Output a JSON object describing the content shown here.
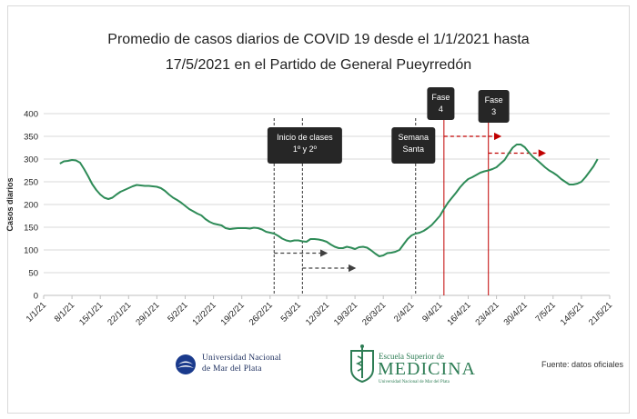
{
  "title_line_1": "Promedio de casos diarios de COVID 19 desde el 1/1/2021 hasta",
  "title_line_2": "17/5/2021 en el Partido de General Pueyrredón",
  "source": "Fuente: datos oficiales",
  "logos": {
    "unmdp_line_1": "Universidad Nacional",
    "unmdp_line_2": "de Mar del Plata",
    "medicina_top": "Escuela Superior de",
    "medicina_main": "MEDICINA",
    "medicina_bottom": "Universidad Nacional de Mar del Plata"
  },
  "colors": {
    "line": "#2e8b57",
    "grid": "#d9d9d9",
    "callout": "#262626",
    "phase_line": "#c00000",
    "clases_arrow": "#404040",
    "phase_arrow": "#c00000"
  },
  "chart_data": {
    "type": "line",
    "title": "Promedio de casos diarios de COVID 19 desde el 1/1/2021 hasta 17/5/2021 en el Partido de General Pueyrredón",
    "xlabel": "",
    "ylabel": "Casos diarios",
    "ylim": [
      0,
      400
    ],
    "yticks": [
      0,
      50,
      100,
      150,
      200,
      250,
      300,
      350,
      400
    ],
    "grid": "horizontal",
    "xtick_labels": [
      "1/1/21",
      "8/1/21",
      "15/1/21",
      "22/1/21",
      "29/1/21",
      "5/2/21",
      "12/2/21",
      "19/2/21",
      "26/2/21",
      "5/3/21",
      "12/3/21",
      "19/3/21",
      "26/3/21",
      "2/4/21",
      "9/4/21",
      "16/4/21",
      "23/4/21",
      "30/4/21",
      "7/5/21",
      "14/5/21",
      "21/5/21"
    ],
    "xtick_days": [
      0,
      7,
      14,
      21,
      28,
      35,
      42,
      49,
      56,
      63,
      70,
      77,
      84,
      91,
      98,
      105,
      112,
      119,
      126,
      133,
      140
    ],
    "series": [
      {
        "name": "",
        "x_day": [
          4,
          5,
          6,
          7,
          8,
          9,
          10,
          11,
          12,
          13,
          14,
          15,
          16,
          17,
          18,
          19,
          20,
          21,
          22,
          23,
          24,
          25,
          26,
          27,
          28,
          29,
          30,
          31,
          32,
          33,
          34,
          35,
          36,
          37,
          38,
          39,
          40,
          41,
          42,
          43,
          44,
          45,
          46,
          47,
          48,
          49,
          50,
          51,
          52,
          53,
          54,
          55,
          56,
          57,
          58,
          59,
          60,
          61,
          62,
          63,
          64,
          65,
          66,
          67,
          68,
          69,
          70,
          71,
          72,
          73,
          74,
          75,
          76,
          77,
          78,
          79,
          80,
          81,
          82,
          83,
          84,
          85,
          86,
          87,
          88,
          89,
          90,
          91,
          92,
          93,
          94,
          95,
          96,
          97,
          98,
          99,
          100,
          101,
          102,
          103,
          104,
          105,
          106,
          107,
          108,
          109,
          110,
          111,
          112,
          113,
          114,
          115,
          116,
          117,
          118,
          119,
          120,
          121,
          122,
          123,
          124,
          125,
          126,
          127,
          128,
          129,
          130,
          131,
          132,
          133,
          134,
          135,
          136,
          137
        ],
        "values": [
          290,
          295,
          296,
          298,
          297,
          292,
          278,
          262,
          245,
          232,
          222,
          215,
          212,
          215,
          222,
          228,
          232,
          236,
          240,
          243,
          242,
          241,
          241,
          240,
          239,
          236,
          230,
          222,
          215,
          210,
          204,
          197,
          190,
          185,
          180,
          176,
          168,
          162,
          158,
          156,
          154,
          148,
          146,
          147,
          148,
          148,
          148,
          147,
          149,
          148,
          145,
          140,
          138,
          136,
          131,
          125,
          121,
          119,
          121,
          121,
          119,
          118,
          124,
          124,
          123,
          121,
          118,
          112,
          107,
          104,
          104,
          107,
          105,
          102,
          106,
          107,
          105,
          99,
          92,
          86,
          88,
          93,
          94,
          96,
          100,
          112,
          124,
          132,
          136,
          138,
          142,
          148,
          155,
          165,
          175,
          190,
          204,
          215,
          226,
          238,
          248,
          256,
          260,
          265,
          270,
          273,
          275,
          278,
          282,
          290,
          298,
          312,
          325,
          332,
          332,
          326,
          315,
          305,
          298,
          290,
          282,
          275,
          270,
          264,
          256,
          250,
          244,
          244,
          246,
          250,
          260,
          272,
          284,
          300
        ]
      }
    ],
    "callouts": [
      {
        "lines": [
          "Inicio de clases",
          "1º y 2º"
        ],
        "x_day": 63
      },
      {
        "lines": [
          "Semana",
          "Santa"
        ],
        "x_day": 91
      },
      {
        "lines": [
          "Fase",
          "4"
        ],
        "x_day": 98
      },
      {
        "lines": [
          "Fase",
          "3"
        ],
        "x_day": 112
      }
    ],
    "event_lines": [
      {
        "x_day": 57,
        "color": "clases"
      },
      {
        "x_day": 64,
        "color": "clases"
      },
      {
        "x_day": 92,
        "color": "clases"
      },
      {
        "x_day": 99,
        "color": "phase"
      },
      {
        "x_day": 110,
        "color": "phase"
      }
    ],
    "arrows": [
      {
        "from_day": 57,
        "to_day": 70,
        "y": 93,
        "color": "clases"
      },
      {
        "from_day": 64,
        "to_day": 77,
        "y": 60,
        "color": "clases"
      },
      {
        "from_day": 99,
        "to_day": 113,
        "y": 350,
        "color": "phase"
      },
      {
        "from_day": 110,
        "to_day": 124,
        "y": 313,
        "color": "phase"
      }
    ]
  }
}
